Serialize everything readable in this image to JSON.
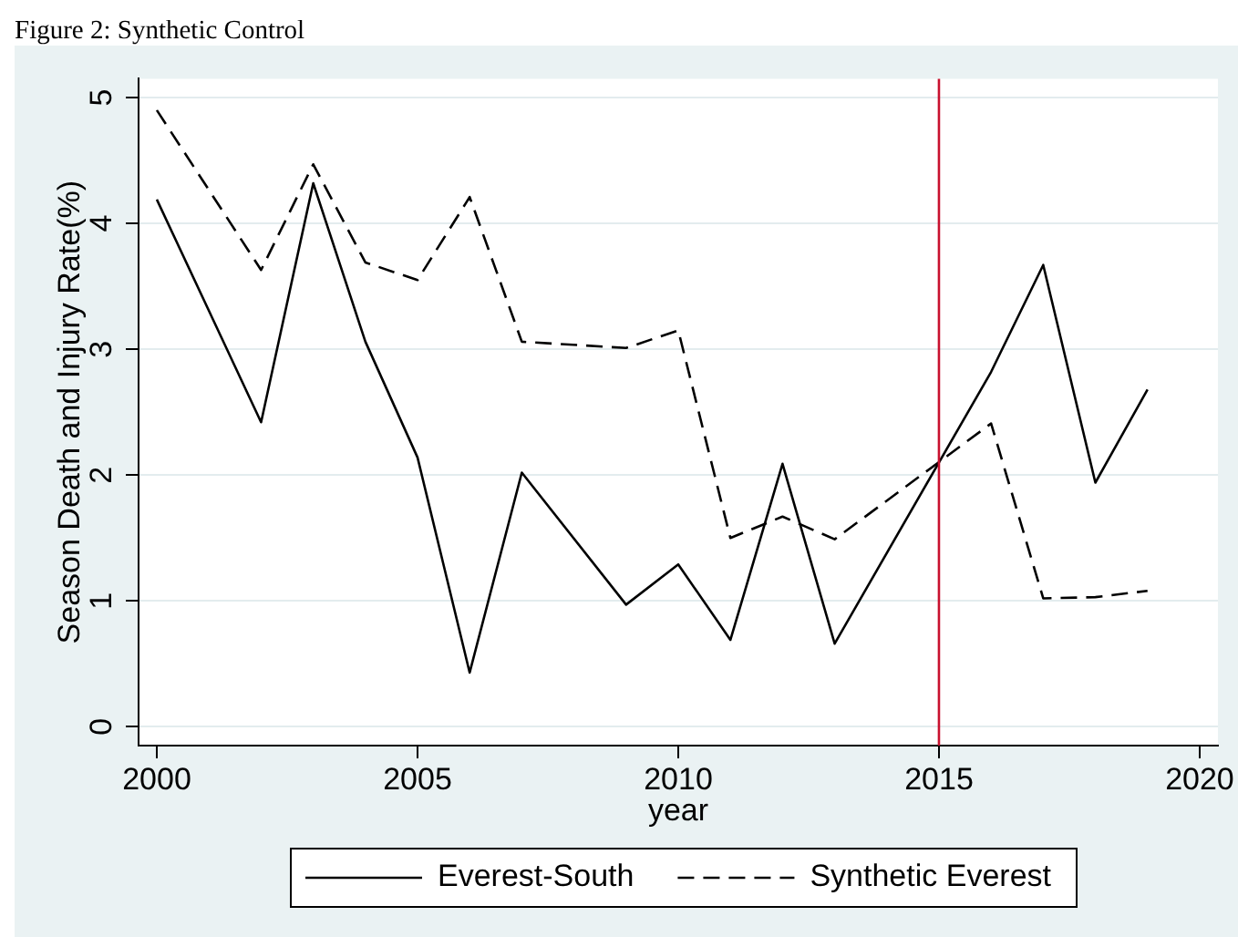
{
  "chart_data": {
    "type": "line",
    "title": "Figure 2: Synthetic Control",
    "xlabel": "year",
    "ylabel": "Season Death and Injury Rate(%)",
    "x": [
      2000,
      2002,
      2003,
      2004,
      2005,
      2006,
      2007,
      2009,
      2010,
      2011,
      2012,
      2013,
      2016,
      2017,
      2018,
      2019
    ],
    "series": [
      {
        "name": "Everest-South",
        "color": "#000000",
        "line_style": "solid",
        "values": [
          4.19,
          2.42,
          4.32,
          3.06,
          2.14,
          0.43,
          2.02,
          0.97,
          1.29,
          0.69,
          2.09,
          0.66,
          2.82,
          3.67,
          1.94,
          2.68
        ]
      },
      {
        "name": "Synthetic Everest",
        "color": "#000000",
        "line_style": "dashed",
        "values": [
          4.9,
          3.63,
          4.47,
          3.69,
          3.55,
          4.21,
          3.06,
          3.01,
          3.15,
          1.5,
          1.67,
          1.49,
          2.41,
          1.02,
          1.03,
          1.08
        ]
      }
    ],
    "xlim": [
      1999.65,
      2020.35
    ],
    "ylim": [
      -0.15,
      5.15
    ],
    "xticks": [
      2000,
      2005,
      2010,
      2015,
      2020
    ],
    "yticks": [
      0,
      1,
      2,
      3,
      4,
      5
    ],
    "grid": "y",
    "legend": "bottom",
    "ref_lines": [
      {
        "axis": "x",
        "value": 2015,
        "color": "#c8102e"
      }
    ]
  }
}
